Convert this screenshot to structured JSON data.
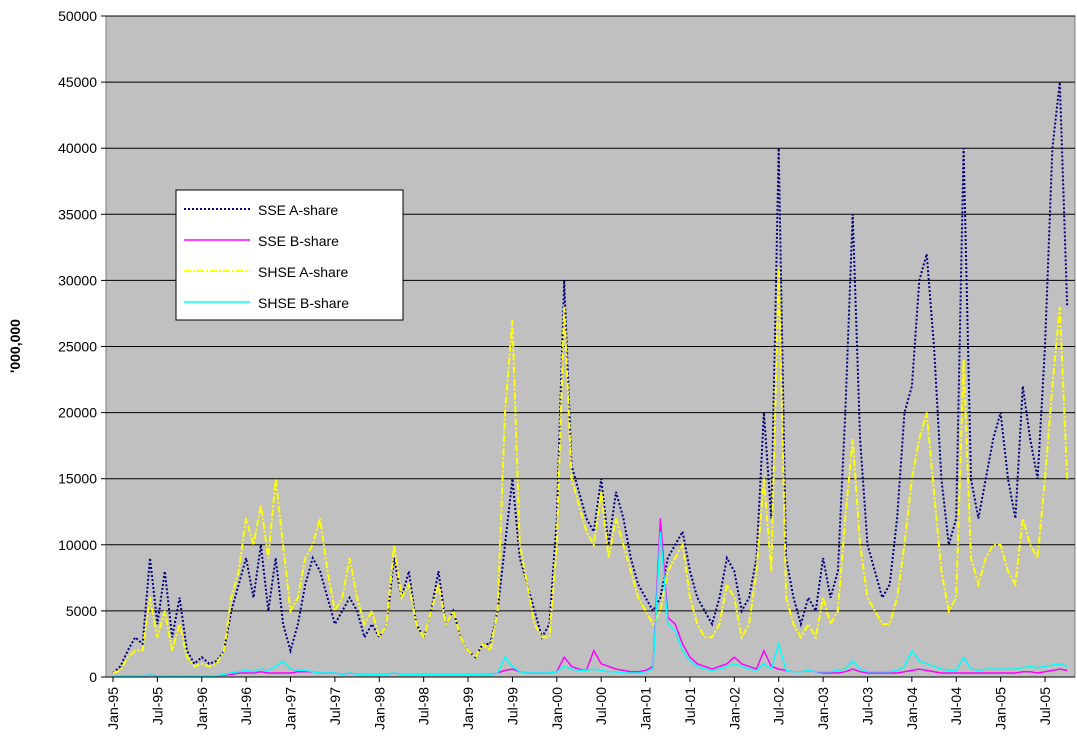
{
  "chart_data": {
    "type": "line",
    "y_label": "'000,000",
    "categories": [
      "Jan-95",
      null,
      null,
      null,
      null,
      null,
      "Jul-95",
      null,
      null,
      null,
      null,
      null,
      "Jan-96",
      null,
      null,
      null,
      null,
      null,
      "Jul-96",
      null,
      null,
      null,
      null,
      null,
      "Jan-97",
      null,
      null,
      null,
      null,
      null,
      "Jul-97",
      null,
      null,
      null,
      null,
      null,
      "Jan-98",
      null,
      null,
      null,
      null,
      null,
      "Jul-98",
      null,
      null,
      null,
      null,
      null,
      "Jan-99",
      null,
      null,
      null,
      null,
      null,
      "Jul-99",
      null,
      null,
      null,
      null,
      null,
      "Jan-00",
      null,
      null,
      null,
      null,
      null,
      "Jul-00",
      null,
      null,
      null,
      null,
      null,
      "Jan-01",
      null,
      null,
      null,
      null,
      null,
      "Jul-01",
      null,
      null,
      null,
      null,
      null,
      "Jan-02",
      null,
      null,
      null,
      null,
      null,
      "Jul-02",
      null,
      null,
      null,
      null,
      null,
      "Jan-03",
      null,
      null,
      null,
      null,
      null,
      "Jul-03",
      null,
      null,
      null,
      null,
      null,
      "Jan-04",
      null,
      null,
      null,
      null,
      null,
      "Jul-04",
      null,
      null,
      null,
      null,
      null,
      "Jan-05",
      null,
      null,
      null,
      null,
      null,
      "Jul-05",
      null,
      null,
      null
    ],
    "series": [
      {
        "name": "SSE A-share",
        "color": "#000080",
        "line_style": "dotted",
        "values": [
          300,
          800,
          2000,
          3000,
          2500,
          9000,
          4000,
          8000,
          3000,
          6000,
          2000,
          1000,
          1500,
          1000,
          1200,
          2000,
          5000,
          7000,
          9000,
          6000,
          10000,
          5000,
          9000,
          4000,
          2000,
          4000,
          7000,
          9000,
          8000,
          6000,
          4000,
          5000,
          6000,
          5000,
          3000,
          4000,
          3000,
          4000,
          9000,
          6000,
          8000,
          4000,
          3000,
          5000,
          8000,
          4000,
          5000,
          3000,
          2000,
          1500,
          2500,
          2500,
          5000,
          10000,
          15000,
          9000,
          7000,
          5000,
          3000,
          4000,
          12000,
          30000,
          16000,
          14000,
          12000,
          11000,
          15000,
          10000,
          14000,
          12000,
          9000,
          7000,
          6000,
          5000,
          6000,
          9000,
          10000,
          11000,
          8000,
          6000,
          5000,
          4000,
          6000,
          9000,
          8000,
          5000,
          6000,
          9000,
          20000,
          12000,
          40000,
          9000,
          6000,
          4000,
          6000,
          5000,
          9000,
          6000,
          8000,
          20000,
          35000,
          18000,
          10000,
          8000,
          6000,
          7000,
          12000,
          20000,
          22000,
          30000,
          32000,
          25000,
          15000,
          10000,
          12000,
          40000,
          15000,
          12000,
          15000,
          18000,
          20000,
          15000,
          12000,
          22000,
          18000,
          15000,
          25000,
          40000,
          45000,
          28000
        ]
      },
      {
        "name": "SSE B-share",
        "color": "#ff00ff",
        "line_style": "solid",
        "values": [
          50,
          50,
          80,
          100,
          100,
          150,
          100,
          100,
          100,
          100,
          100,
          100,
          100,
          100,
          100,
          150,
          200,
          300,
          300,
          300,
          400,
          300,
          300,
          300,
          300,
          400,
          400,
          400,
          300,
          300,
          300,
          200,
          300,
          200,
          200,
          200,
          200,
          200,
          300,
          200,
          200,
          200,
          200,
          200,
          200,
          200,
          200,
          200,
          200,
          200,
          200,
          200,
          300,
          500,
          600,
          400,
          300,
          300,
          300,
          300,
          400,
          1500,
          800,
          600,
          500,
          2000,
          1000,
          800,
          600,
          500,
          400,
          400,
          500,
          800,
          12000,
          4500,
          4000,
          2500,
          1500,
          1000,
          800,
          600,
          800,
          1000,
          1500,
          1000,
          800,
          600,
          2000,
          800,
          600,
          500,
          400,
          400,
          500,
          400,
          300,
          300,
          300,
          400,
          600,
          400,
          300,
          300,
          300,
          300,
          300,
          400,
          500,
          600,
          500,
          400,
          300,
          300,
          300,
          300,
          300,
          300,
          300,
          300,
          300,
          300,
          300,
          400,
          400,
          300,
          400,
          500,
          600,
          500
        ]
      },
      {
        "name": "SHSE A-share",
        "color": "#ffff00",
        "line_style": "dashdot",
        "values": [
          300,
          500,
          1500,
          2000,
          2000,
          6000,
          3000,
          5000,
          2000,
          4000,
          1500,
          800,
          1000,
          800,
          1000,
          2000,
          6000,
          8000,
          12000,
          10000,
          13000,
          9000,
          15000,
          10000,
          5000,
          6000,
          9000,
          10000,
          12000,
          8000,
          5000,
          6000,
          9000,
          6000,
          4000,
          5000,
          3000,
          4000,
          10000,
          6000,
          7000,
          4000,
          3000,
          5000,
          7000,
          4000,
          5000,
          3000,
          2000,
          1500,
          2500,
          2000,
          5000,
          20000,
          27000,
          10000,
          7000,
          4000,
          3000,
          3000,
          10000,
          28000,
          15000,
          13000,
          11000,
          10000,
          14000,
          9000,
          12000,
          10000,
          8000,
          6000,
          5000,
          4000,
          5000,
          8000,
          9000,
          10000,
          6000,
          4000,
          3000,
          3000,
          4000,
          7000,
          6000,
          3000,
          4000,
          8000,
          15000,
          8000,
          31000,
          6000,
          4000,
          3000,
          4000,
          3000,
          6000,
          4000,
          5000,
          12000,
          18000,
          10000,
          6000,
          5000,
          4000,
          4000,
          6000,
          10000,
          15000,
          18000,
          20000,
          14000,
          8000,
          5000,
          6000,
          24000,
          9000,
          7000,
          9000,
          10000,
          10000,
          8000,
          7000,
          12000,
          10000,
          9000,
          15000,
          22000,
          28000,
          15000
        ]
      },
      {
        "name": "SHSE B-share",
        "color": "#00ffff",
        "line_style": "solid",
        "values": [
          50,
          50,
          80,
          100,
          100,
          150,
          100,
          100,
          100,
          100,
          100,
          100,
          100,
          100,
          100,
          200,
          300,
          400,
          500,
          400,
          600,
          500,
          800,
          1200,
          600,
          500,
          500,
          400,
          300,
          300,
          300,
          200,
          300,
          200,
          200,
          200,
          200,
          200,
          300,
          200,
          200,
          200,
          200,
          200,
          200,
          200,
          200,
          200,
          200,
          200,
          200,
          200,
          300,
          1500,
          800,
          400,
          300,
          300,
          300,
          300,
          400,
          800,
          600,
          500,
          500,
          600,
          500,
          400,
          400,
          300,
          300,
          300,
          400,
          600,
          11000,
          4000,
          3500,
          2000,
          1200,
          800,
          600,
          500,
          600,
          800,
          1000,
          800,
          600,
          500,
          1000,
          600,
          2500,
          500,
          400,
          400,
          500,
          400,
          400,
          400,
          500,
          600,
          1200,
          600,
          400,
          400,
          400,
          400,
          500,
          800,
          2000,
          1200,
          1000,
          800,
          600,
          500,
          500,
          1500,
          600,
          500,
          600,
          600,
          600,
          600,
          600,
          700,
          800,
          700,
          800,
          900,
          1000,
          800
        ]
      }
    ],
    "ylim": [
      0,
      50000
    ],
    "yticks": [
      0,
      5000,
      10000,
      15000,
      20000,
      25000,
      30000,
      35000,
      40000,
      45000,
      50000
    ],
    "grid": true,
    "background": "#c0c0c0"
  }
}
